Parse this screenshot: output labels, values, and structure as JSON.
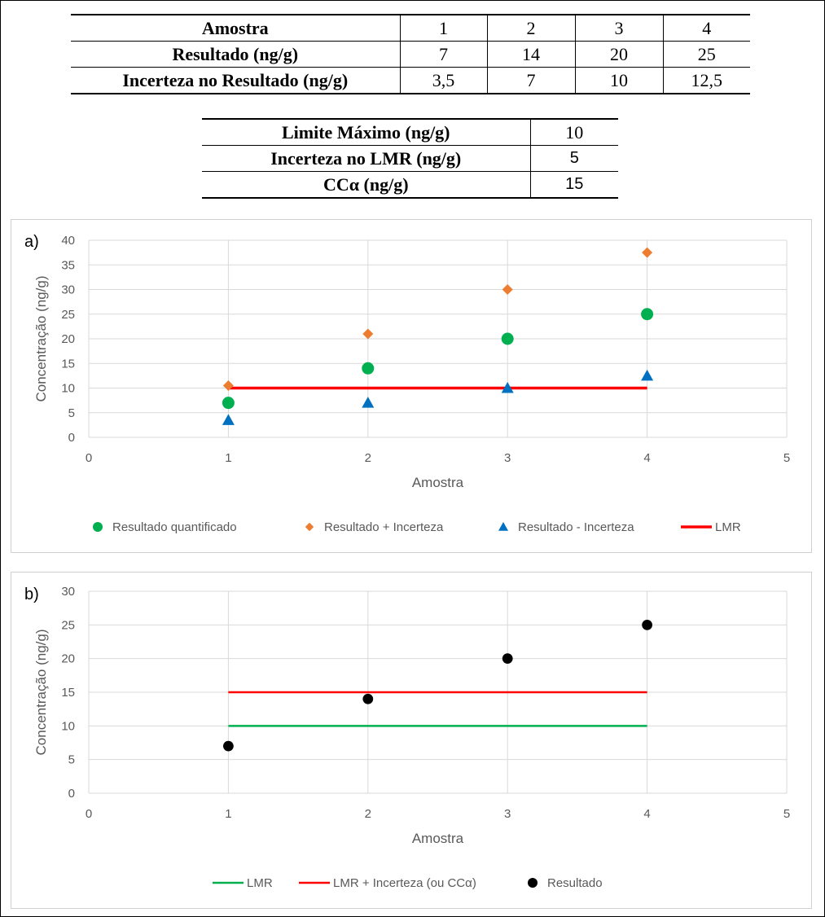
{
  "table1": {
    "rows": [
      {
        "label": "Amostra",
        "cells": [
          "1",
          "2",
          "3",
          "4"
        ]
      },
      {
        "label": "Resultado (ng/g)",
        "cells": [
          "7",
          "14",
          "20",
          "25"
        ]
      },
      {
        "label": "Incerteza no Resultado (ng/g)",
        "cells": [
          "3,5",
          "7",
          "10",
          "12,5"
        ]
      }
    ]
  },
  "table2": {
    "rows": [
      {
        "label": "Limite Máximo (ng/g)",
        "value": "10"
      },
      {
        "label": "Incerteza no LMR (ng/g)",
        "value": "5"
      },
      {
        "label": "CCα (ng/g)",
        "value": "15"
      }
    ]
  },
  "chart_data": [
    {
      "type": "scatter",
      "panel_label": "a)",
      "xlabel": "Amostra",
      "ylabel": "Concentração (ng/g)",
      "xlim": [
        0,
        5
      ],
      "ylim": [
        0,
        40
      ],
      "x_ticks": [
        "0",
        "1",
        "2",
        "3",
        "4",
        "5"
      ],
      "y_ticks": [
        "0",
        "5",
        "10",
        "15",
        "20",
        "25",
        "30",
        "35",
        "40"
      ],
      "grid": true,
      "legend_position": "bottom",
      "series": [
        {
          "name": "Resultado quantificado",
          "marker": "circle",
          "color": "#00b050",
          "x": [
            1,
            2,
            3,
            4
          ],
          "y": [
            7,
            14,
            20,
            25
          ]
        },
        {
          "name": "Resultado + Incerteza",
          "marker": "diamond",
          "color": "#ed7d31",
          "x": [
            1,
            2,
            3,
            4
          ],
          "y": [
            10.5,
            21,
            30,
            37.5
          ]
        },
        {
          "name": "Resultado - Incerteza",
          "marker": "triangle",
          "color": "#0070c0",
          "x": [
            1,
            2,
            3,
            4
          ],
          "y": [
            3.5,
            7,
            10,
            12.5
          ]
        },
        {
          "name": "LMR",
          "marker": "line",
          "color": "#ff0000",
          "x": [
            1,
            4
          ],
          "y": [
            10,
            10
          ]
        }
      ]
    },
    {
      "type": "scatter",
      "panel_label": "b)",
      "xlabel": "Amostra",
      "ylabel": "Concentração (ng/g)",
      "xlim": [
        0,
        5
      ],
      "ylim": [
        0,
        30
      ],
      "x_ticks": [
        "0",
        "1",
        "2",
        "3",
        "4",
        "5"
      ],
      "y_ticks": [
        "0",
        "5",
        "10",
        "15",
        "20",
        "25",
        "30"
      ],
      "grid": true,
      "legend_position": "bottom",
      "series": [
        {
          "name": "LMR",
          "marker": "line",
          "color": "#00b050",
          "x": [
            1,
            4
          ],
          "y": [
            10,
            10
          ]
        },
        {
          "name": "LMR + Incerteza (ou CCα)",
          "marker": "line",
          "color": "#ff0000",
          "x": [
            1,
            4
          ],
          "y": [
            15,
            15
          ]
        },
        {
          "name": "Resultado",
          "marker": "circle",
          "color": "#000000",
          "x": [
            1,
            2,
            3,
            4
          ],
          "y": [
            7,
            14,
            20,
            25
          ]
        }
      ]
    }
  ]
}
